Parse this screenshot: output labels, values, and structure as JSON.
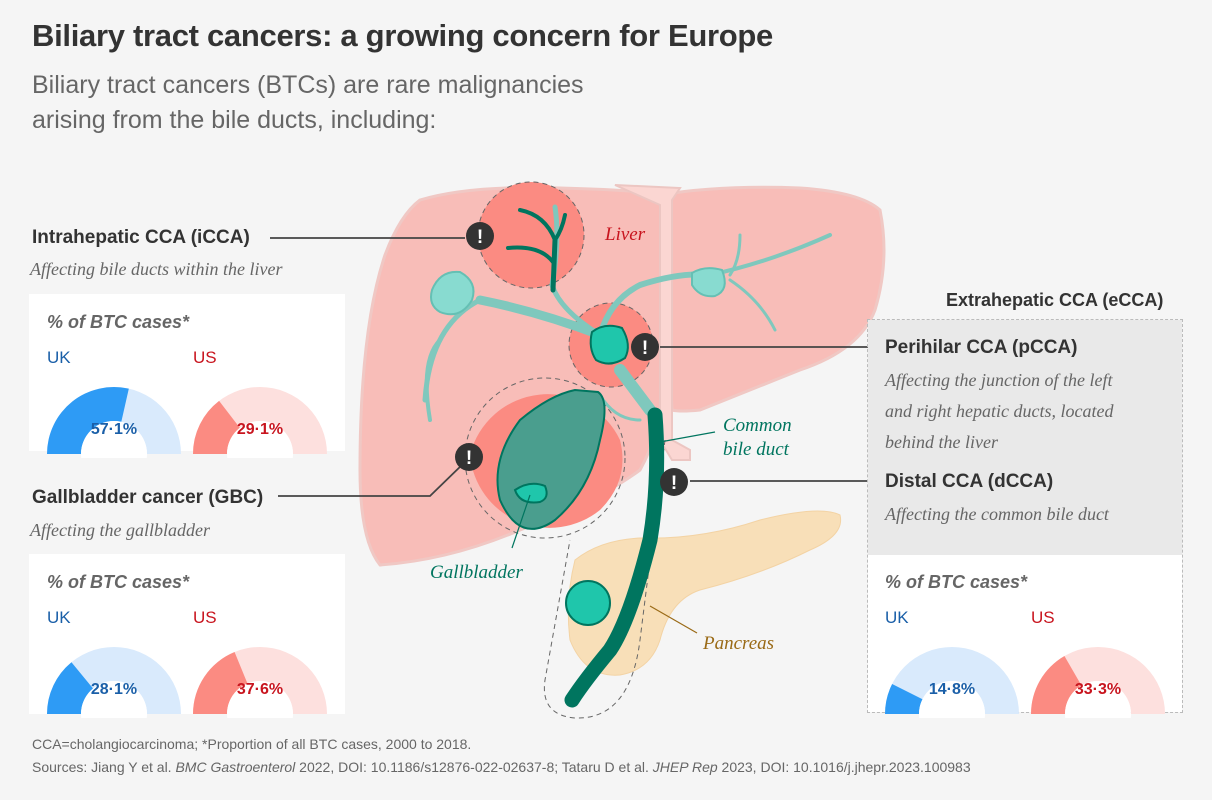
{
  "header": {
    "title": "Biliary tract cancers: a growing concern for Europe",
    "subtitle_line1": "Biliary tract cancers (BTCs) are rare malignancies",
    "subtitle_line2": "arising from the bile ducts, including:"
  },
  "sections": {
    "icca": {
      "title": "Intrahepatic CCA (iCCA)",
      "description": "Affecting bile ducts within the liver",
      "card_title": "% of BTC cases*",
      "uk": {
        "label": "UK",
        "value": 57.1,
        "display": "57·1%"
      },
      "us": {
        "label": "US",
        "value": 29.1,
        "display": "29·1%"
      }
    },
    "gbc": {
      "title": "Gallbladder cancer (GBC)",
      "description": "Affecting the gallbladder",
      "card_title": "% of BTC cases*",
      "uk": {
        "label": "UK",
        "value": 28.1,
        "display": "28·1%"
      },
      "us": {
        "label": "US",
        "value": 37.6,
        "display": "37·6%"
      }
    },
    "ecca": {
      "title": "Extrahepatic CCA (eCCA)",
      "pcca_title": "Perihilar CCA (pCCA)",
      "pcca_desc_line1": "Affecting the junction of the left",
      "pcca_desc_line2": "and right hepatic ducts, located",
      "pcca_desc_line3": "behind the liver",
      "dcca_title": "Distal CCA (dCCA)",
      "dcca_desc": "Affecting the common bile duct",
      "card_title": "% of BTC cases*",
      "uk": {
        "label": "UK",
        "value": 14.8,
        "display": "14·8%"
      },
      "us": {
        "label": "US",
        "value": 33.3,
        "display": "33·3%"
      }
    }
  },
  "diagram": {
    "liver_label": "Liver",
    "common_bile_duct_line1": "Common",
    "common_bile_duct_line2": "bile duct",
    "gallbladder_label": "Gallbladder",
    "pancreas_label": "Pancreas",
    "alert_glyph": "!"
  },
  "colors": {
    "uk_fill": "#2e9bf5",
    "uk_track": "#d9eafc",
    "us_fill": "#fb8b82",
    "us_track": "#fde0de",
    "duct": "#00755f",
    "liver": "#f8bdb8",
    "pancreas": "#f8dfb8"
  },
  "footer": {
    "line1": "CCA=cholangiocarcinoma; *Proportion of all BTC cases, 2000 to 2018.",
    "sources_prefix": "Sources: Jiang Y et al. ",
    "journal1": "BMC Gastroenterol",
    "ref1": " 2022, DOI: 10.1186/s12876-022-02637-8; Tataru D et al. ",
    "journal2": "JHEP Rep",
    "ref2": " 2023, DOI: 10.1016/j.jhepr.2023.100983"
  }
}
